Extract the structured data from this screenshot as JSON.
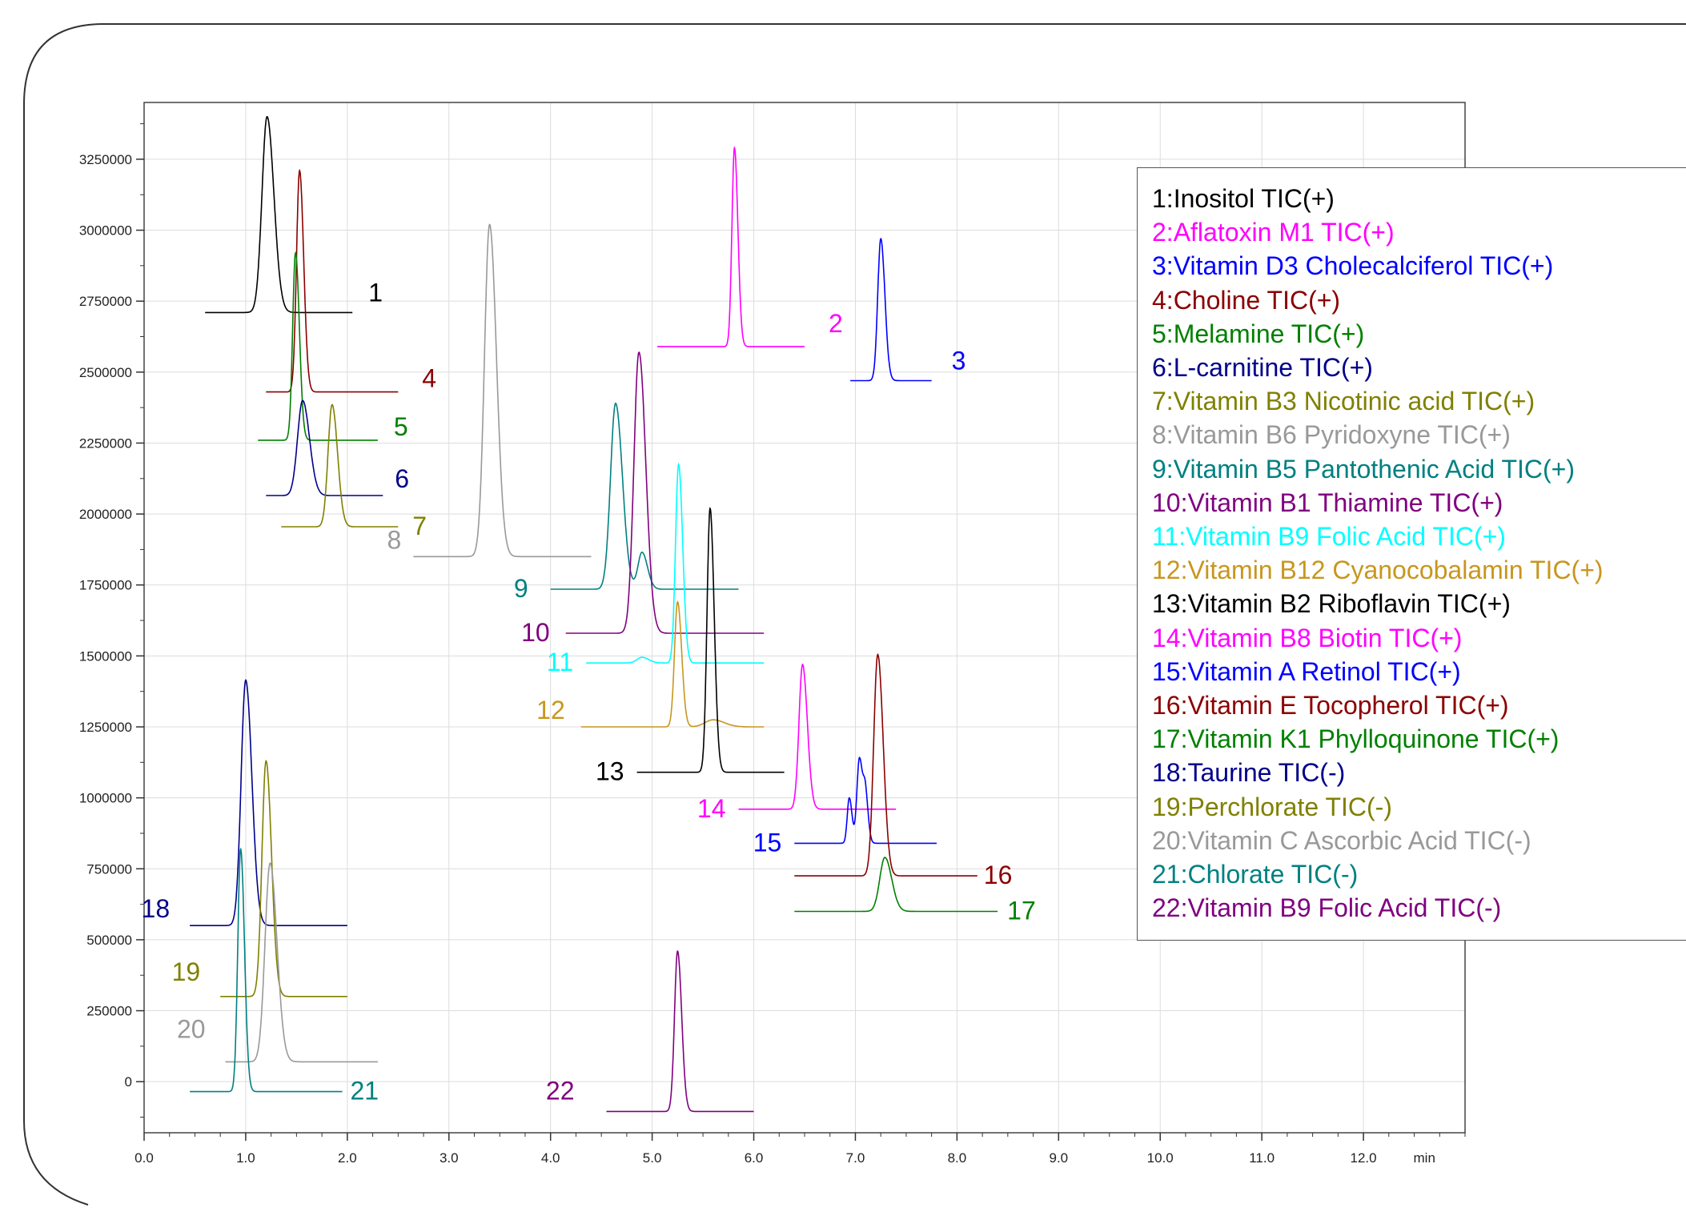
{
  "chart_data": {
    "type": "line",
    "title": "",
    "xlabel": "min",
    "ylabel": "",
    "xlim": [
      0.0,
      13.0
    ],
    "ylim": [
      -180000,
      3450000
    ],
    "x_ticks": [
      0.0,
      1.0,
      2.0,
      3.0,
      4.0,
      5.0,
      6.0,
      7.0,
      8.0,
      9.0,
      10.0,
      11.0,
      12.0
    ],
    "x_tick_labels": [
      "0.0",
      "1.0",
      "2.0",
      "3.0",
      "4.0",
      "5.0",
      "6.0",
      "7.0",
      "8.0",
      "9.0",
      "10.0",
      "11.0",
      "12.0"
    ],
    "y_ticks": [
      0,
      250000,
      500000,
      750000,
      1000000,
      1250000,
      1500000,
      1750000,
      2000000,
      2250000,
      2500000,
      2750000,
      3000000,
      3250000
    ],
    "y_tick_labels": [
      "0",
      "250000",
      "500000",
      "750000",
      "1000000",
      "1250000",
      "1500000",
      "1750000",
      "2000000",
      "2250000",
      "2500000",
      "2750000",
      "3000000",
      "3250000"
    ],
    "grid": true,
    "legend_position": "right",
    "series": [
      {
        "name": "1:Inositol TIC(+)",
        "label": "1",
        "color": "#000000",
        "x_start": 0.6,
        "x_end": 2.05,
        "baseline": 2710000,
        "peaks": [
          {
            "rt": 1.21,
            "height": 690000,
            "width": 0.05
          }
        ]
      },
      {
        "name": "2:Aflatoxin M1 TIC(+)",
        "label": "2",
        "color": "#ff00ff",
        "x_start": 5.05,
        "x_end": 6.5,
        "baseline": 2590000,
        "peaks": [
          {
            "rt": 5.81,
            "height": 700000,
            "width": 0.025
          }
        ]
      },
      {
        "name": "3:Vitamin D3 Cholecalciferol TIC(+)",
        "label": "3",
        "color": "#0000ff",
        "x_start": 6.95,
        "x_end": 7.75,
        "baseline": 2470000,
        "peaks": [
          {
            "rt": 7.25,
            "height": 500000,
            "width": 0.03
          }
        ]
      },
      {
        "name": "4:Choline TIC(+)",
        "label": "4",
        "color": "#8b0000",
        "x_start": 1.2,
        "x_end": 2.5,
        "baseline": 2430000,
        "peaks": [
          {
            "rt": 1.53,
            "height": 780000,
            "width": 0.03
          }
        ]
      },
      {
        "name": "5:Melamine TIC(+)",
        "label": "5",
        "color": "#008000",
        "x_start": 1.12,
        "x_end": 2.3,
        "baseline": 2260000,
        "peaks": [
          {
            "rt": 1.49,
            "height": 660000,
            "width": 0.028
          }
        ]
      },
      {
        "name": "6:L-carnitine TIC(+)",
        "label": "6",
        "color": "#00008b",
        "x_start": 1.2,
        "x_end": 2.35,
        "baseline": 2065000,
        "peaks": [
          {
            "rt": 1.56,
            "height": 335000,
            "width": 0.05
          }
        ]
      },
      {
        "name": "7:Vitamin B3 Nicotinic acid TIC(+)",
        "label": "7",
        "color": "#808000",
        "x_start": 1.35,
        "x_end": 2.5,
        "baseline": 1955000,
        "peaks": [
          {
            "rt": 1.85,
            "height": 430000,
            "width": 0.04
          }
        ]
      },
      {
        "name": "8:Vitamin B6 Pyridoxyne  TIC(+)",
        "label": "8",
        "color": "#999999",
        "x_start": 2.65,
        "x_end": 4.4,
        "baseline": 1850000,
        "peaks": [
          {
            "rt": 3.4,
            "height": 1170000,
            "width": 0.05
          }
        ]
      },
      {
        "name": "9:Vitamin B5 Pantothenic Acid TIC(+)",
        "label": "9",
        "color": "#008080",
        "x_start": 4.0,
        "x_end": 5.85,
        "baseline": 1735000,
        "peaks": [
          {
            "rt": 4.64,
            "height": 655000,
            "width": 0.05
          },
          {
            "rt": 4.9,
            "height": 130000,
            "width": 0.04
          }
        ]
      },
      {
        "name": "10:Vitamin B1 Thiamine TIC(+)",
        "label": "10",
        "color": "#800080",
        "x_start": 4.15,
        "x_end": 6.1,
        "baseline": 1580000,
        "peaks": [
          {
            "rt": 4.87,
            "height": 990000,
            "width": 0.05
          }
        ]
      },
      {
        "name": "11:Vitamin B9 Folic Acid TIC(+)",
        "label": "11",
        "color": "#00ffff",
        "x_start": 4.35,
        "x_end": 6.1,
        "baseline": 1475000,
        "peaks": [
          {
            "rt": 5.26,
            "height": 700000,
            "width": 0.03
          },
          {
            "rt": 4.9,
            "height": 20000,
            "width": 0.05
          }
        ]
      },
      {
        "name": "12:Vitamin B12 Cyanocobalamin TIC(+)",
        "label": "12",
        "color": "#c8961e",
        "x_start": 4.3,
        "x_end": 6.1,
        "baseline": 1250000,
        "peaks": [
          {
            "rt": 5.25,
            "height": 440000,
            "width": 0.03
          },
          {
            "rt": 5.6,
            "height": 25000,
            "width": 0.08
          }
        ]
      },
      {
        "name": "13:Vitamin B2 Riboflavin TIC(+)",
        "label": "13",
        "color": "#000000",
        "x_start": 4.85,
        "x_end": 6.3,
        "baseline": 1090000,
        "peaks": [
          {
            "rt": 5.57,
            "height": 930000,
            "width": 0.03
          }
        ]
      },
      {
        "name": "14:Vitamin B8 Biotin TIC(+)",
        "label": "14",
        "color": "#ff00ff",
        "x_start": 5.85,
        "x_end": 7.4,
        "baseline": 960000,
        "peaks": [
          {
            "rt": 6.48,
            "height": 510000,
            "width": 0.035
          }
        ]
      },
      {
        "name": "15:Vitamin A Retinol TIC(+)",
        "label": "15",
        "color": "#0000ff",
        "x_start": 6.4,
        "x_end": 7.8,
        "baseline": 840000,
        "peaks": [
          {
            "rt": 7.04,
            "height": 300000,
            "width": 0.025
          },
          {
            "rt": 6.94,
            "height": 160000,
            "width": 0.02
          },
          {
            "rt": 7.1,
            "height": 150000,
            "width": 0.02
          }
        ]
      },
      {
        "name": "16:Vitamin E Tocopherol TIC(+)",
        "label": "16",
        "color": "#8b0000",
        "x_start": 6.4,
        "x_end": 8.2,
        "baseline": 725000,
        "peaks": [
          {
            "rt": 7.22,
            "height": 780000,
            "width": 0.04
          }
        ]
      },
      {
        "name": "17:Vitamin K1 Phylloquinone TIC(+)",
        "label": "17",
        "color": "#008000",
        "x_start": 6.4,
        "x_end": 8.4,
        "baseline": 600000,
        "peaks": [
          {
            "rt": 7.29,
            "height": 190000,
            "width": 0.05
          }
        ]
      },
      {
        "name": "18:Taurine TIC(-)",
        "label": "18",
        "color": "#00008b",
        "x_start": 0.45,
        "x_end": 2.0,
        "baseline": 550000,
        "peaks": [
          {
            "rt": 1.0,
            "height": 865000,
            "width": 0.045
          }
        ]
      },
      {
        "name": "19:Perchlorate TIC(-)",
        "label": "19",
        "color": "#808000",
        "x_start": 0.75,
        "x_end": 2.0,
        "baseline": 300000,
        "peaks": [
          {
            "rt": 1.2,
            "height": 830000,
            "width": 0.04
          }
        ]
      },
      {
        "name": "20:Vitamin C Ascorbic Acid TIC(-)",
        "label": "20",
        "color": "#999999",
        "x_start": 0.8,
        "x_end": 2.3,
        "baseline": 70000,
        "peaks": [
          {
            "rt": 1.24,
            "height": 700000,
            "width": 0.05
          }
        ]
      },
      {
        "name": "21:Chlorate TIC(-)",
        "label": "21",
        "color": "#008080",
        "x_start": 0.45,
        "x_end": 1.95,
        "baseline": -35000,
        "peaks": [
          {
            "rt": 0.95,
            "height": 855000,
            "width": 0.028
          }
        ]
      },
      {
        "name": "22:Vitamin B9 Folic Acid TIC(-)",
        "label": "22",
        "color": "#800080",
        "x_start": 4.55,
        "x_end": 6.0,
        "baseline": -105000,
        "peaks": [
          {
            "rt": 5.25,
            "height": 565000,
            "width": 0.03
          }
        ]
      }
    ]
  }
}
